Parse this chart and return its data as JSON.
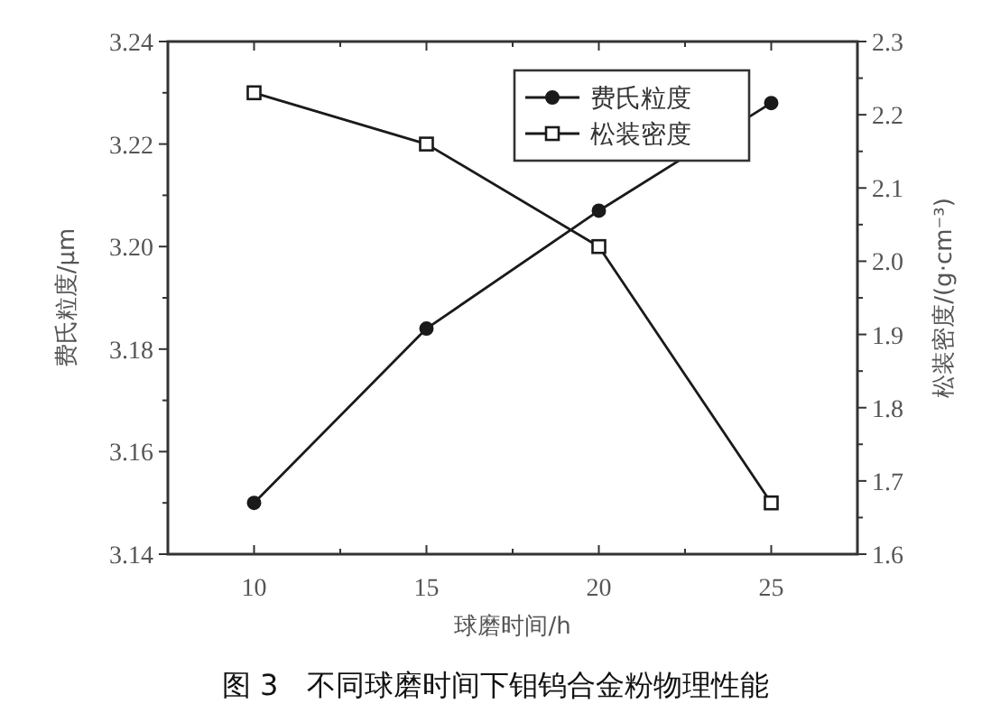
{
  "chart_data": {
    "type": "line",
    "xlabel": "球磨时间/h",
    "ylabel": "费氏粒度/μm",
    "y2label": "松装密度/(g·cm⁻³)",
    "x": [
      10,
      15,
      20,
      25
    ],
    "series": [
      {
        "name": "费氏粒度",
        "color": "#1a1a1a",
        "marker": "circle",
        "values": [
          3.15,
          3.184,
          3.207,
          3.228
        ]
      },
      {
        "name": "松装密度",
        "color": "#1a1a1a",
        "marker": "square",
        "axis": "y2",
        "values": [
          2.23,
          2.16,
          2.02,
          1.67
        ]
      }
    ],
    "xlim": [
      7.5,
      27.5
    ],
    "xticks": [
      10,
      15,
      20,
      25
    ],
    "ylim": [
      3.14,
      3.24
    ],
    "yticks": [
      3.14,
      3.16,
      3.18,
      {
        "value": 3.2,
        "label": "3.20"
      },
      3.22,
      3.24
    ],
    "y2lim": [
      1.6,
      2.3
    ],
    "y2ticks": [
      1.6,
      1.7,
      1.8,
      1.9,
      {
        "value": 2,
        "label": "2.0"
      },
      2.1,
      2.2,
      2.3
    ],
    "legend": "top right",
    "grid": false,
    "line_style": "solid",
    "annotations": [
      "图 3　不同球磨时间下钼钨合金粉物理性能"
    ]
  }
}
